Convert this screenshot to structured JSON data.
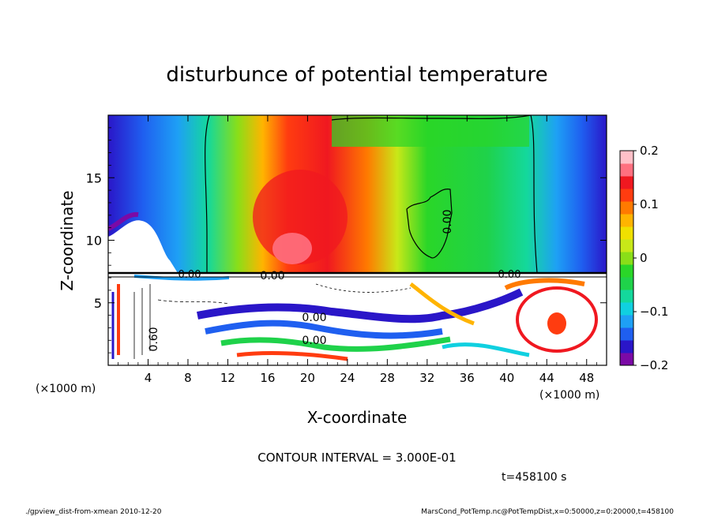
{
  "chart_data": {
    "type": "heatmap",
    "title": "disturbunce of potential temperature",
    "xlabel": "X-coordinate",
    "ylabel": "Z-coordinate",
    "x_unit": "(×1000 m)",
    "xlim": [
      0,
      50
    ],
    "ylim": [
      0,
      20
    ],
    "x_ticks": [
      "4",
      "8",
      "12",
      "16",
      "20",
      "24",
      "28",
      "32",
      "36",
      "40",
      "44",
      "48"
    ],
    "y_ticks": [
      "5",
      "10",
      "15"
    ],
    "colorbar": {
      "range": [
        -0.2,
        0.2
      ],
      "tick_labels": [
        "0.2",
        "0.1",
        "0",
        "−0.1",
        "−0.2"
      ],
      "colors": [
        "#7b0aa6",
        "#2a16c8",
        "#1f5ff0",
        "#1ea0f5",
        "#10d0e0",
        "#14d89c",
        "#1fd24a",
        "#2ad628",
        "#8ade18",
        "#c8e818",
        "#f0e000",
        "#ffb400",
        "#ff7a00",
        "#ff3c10",
        "#f01820",
        "#ff7080",
        "#ffc0c8"
      ]
    },
    "contour_labels": [
      "0.00",
      "0.00",
      "0.00",
      "0.00",
      "0.00",
      "0.00",
      "0.60"
    ],
    "contour_interval": "CONTOUR INTERVAL = 3.000E-01",
    "time": "t=458100 s"
  },
  "footer": {
    "left": "./gpview_dist-from-xmean  2010-12-20",
    "right": "MarsCond_PotTemp.nc@PotTempDist,x=0:50000,z=0:20000,t=458100"
  }
}
